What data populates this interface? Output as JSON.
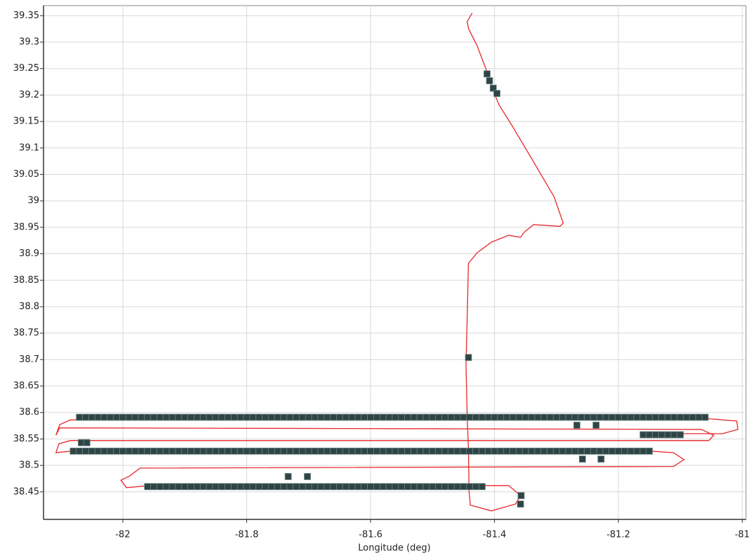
{
  "chart_data": {
    "type": "scatter",
    "x_label": "Longitude (deg)",
    "xlim": [
      -82.128,
      -80.994
    ],
    "ylim": [
      38.398,
      39.369
    ],
    "xticks": [
      -82,
      -81.8,
      -81.6,
      -81.4,
      -81.2,
      -81
    ],
    "yticks": [
      38.45,
      38.5,
      38.55,
      38.6,
      38.65,
      38.7,
      38.75,
      38.8,
      38.85,
      38.9,
      38.95,
      39,
      39.05,
      39.1,
      39.15,
      39.2,
      39.25,
      39.3,
      39.35
    ],
    "grid": true,
    "series": [
      {
        "kind": "line",
        "color": "#e8282c",
        "x": [
          -81.436,
          -81.444,
          -81.442,
          -81.428,
          -81.413,
          -81.402,
          -81.392,
          -81.371,
          -81.337,
          -81.304,
          -81.289,
          -81.294,
          -81.337,
          -81.351,
          -81.358,
          -81.377,
          -81.405,
          -81.428,
          -81.442,
          -81.444,
          -81.446,
          -81.444,
          -81.442,
          -81.441,
          -81.439,
          -81.405,
          -81.366,
          -81.358,
          -81.377,
          -81.957,
          -81.994,
          -82.003,
          -81.989,
          -81.972,
          -81.111,
          -81.094,
          -81.111,
          -81.147,
          -82.083,
          -82.108,
          -82.103,
          -82.085,
          -81.054,
          -81.046,
          -81.066,
          -82.102,
          -82.108,
          -82.102,
          -82.085,
          -81.062,
          -81.009,
          -81.007,
          -81.032,
          -81.165
        ],
        "y": [
          39.355,
          39.339,
          39.326,
          39.293,
          39.247,
          39.207,
          39.18,
          39.141,
          39.074,
          39.008,
          38.958,
          38.952,
          38.955,
          38.942,
          38.931,
          38.935,
          38.922,
          38.902,
          38.882,
          38.783,
          38.69,
          38.592,
          38.531,
          38.451,
          38.425,
          38.414,
          38.427,
          38.443,
          38.462,
          38.462,
          38.458,
          38.472,
          38.48,
          38.495,
          38.498,
          38.511,
          38.524,
          38.527,
          38.527,
          38.524,
          38.541,
          38.547,
          38.547,
          38.557,
          38.568,
          38.571,
          38.557,
          38.577,
          38.586,
          38.589,
          38.584,
          38.568,
          38.56,
          38.56
        ]
      },
      {
        "kind": "marker",
        "color": "#2f4545",
        "x": [
          -82.07,
          -82.06,
          -82.05,
          -82.04,
          -82.03,
          -82.02,
          -82.01,
          -82,
          -81.99,
          -81.98,
          -81.97,
          -81.96,
          -81.95,
          -81.94,
          -81.93,
          -81.92,
          -81.91,
          -81.9,
          -81.89,
          -81.88,
          -81.87,
          -81.86,
          -81.85,
          -81.84,
          -81.83,
          -81.82,
          -81.81,
          -81.8,
          -81.79,
          -81.78,
          -81.77,
          -81.76,
          -81.75,
          -81.74,
          -81.73,
          -81.72,
          -81.71,
          -81.7,
          -81.69,
          -81.68,
          -81.67,
          -81.66,
          -81.65,
          -81.64,
          -81.63,
          -81.62,
          -81.61,
          -81.6,
          -81.59,
          -81.58,
          -81.57,
          -81.56,
          -81.55,
          -81.54,
          -81.53,
          -81.52,
          -81.51,
          -81.5,
          -81.49,
          -81.48,
          -81.47,
          -81.46,
          -81.45,
          -81.44,
          -81.43,
          -81.42,
          -81.41,
          -81.4,
          -81.39,
          -81.38,
          -81.37,
          -81.36,
          -81.35,
          -81.34,
          -81.33,
          -81.32,
          -81.31,
          -81.3,
          -81.29,
          -81.28,
          -81.27,
          -81.26,
          -81.25,
          -81.24,
          -81.23,
          -81.22,
          -81.21,
          -81.2,
          -81.19,
          -81.18,
          -81.17,
          -81.16,
          -81.15,
          -81.14,
          -81.13,
          -81.12,
          -81.11,
          -81.1,
          -81.09,
          -81.08,
          -81.07,
          -81.06
        ],
        "y": [
          38.591,
          38.591,
          38.591,
          38.591,
          38.591,
          38.591,
          38.591,
          38.591,
          38.591,
          38.591,
          38.591,
          38.591,
          38.591,
          38.591,
          38.591,
          38.591,
          38.591,
          38.591,
          38.591,
          38.591,
          38.591,
          38.591,
          38.591,
          38.591,
          38.591,
          38.591,
          38.591,
          38.591,
          38.591,
          38.591,
          38.591,
          38.591,
          38.591,
          38.591,
          38.591,
          38.591,
          38.591,
          38.591,
          38.591,
          38.591,
          38.591,
          38.591,
          38.591,
          38.591,
          38.591,
          38.591,
          38.591,
          38.591,
          38.591,
          38.591,
          38.591,
          38.591,
          38.591,
          38.591,
          38.591,
          38.591,
          38.591,
          38.591,
          38.591,
          38.591,
          38.591,
          38.591,
          38.591,
          38.591,
          38.591,
          38.591,
          38.591,
          38.591,
          38.591,
          38.591,
          38.591,
          38.591,
          38.591,
          38.591,
          38.591,
          38.591,
          38.591,
          38.591,
          38.591,
          38.591,
          38.591,
          38.591,
          38.591,
          38.591,
          38.591,
          38.591,
          38.591,
          38.591,
          38.591,
          38.591,
          38.591,
          38.591,
          38.591,
          38.591,
          38.591,
          38.591,
          38.591,
          38.591,
          38.591,
          38.591,
          38.591,
          38.591
        ]
      },
      {
        "kind": "marker",
        "color": "#2f4545",
        "x": [
          -82.08,
          -82.07,
          -82.06,
          -82.05,
          -82.04,
          -82.03,
          -82.02,
          -82.01,
          -82,
          -81.99,
          -81.98,
          -81.97,
          -81.96,
          -81.95,
          -81.94,
          -81.93,
          -81.92,
          -81.91,
          -81.9,
          -81.89,
          -81.88,
          -81.87,
          -81.86,
          -81.85,
          -81.84,
          -81.83,
          -81.82,
          -81.81,
          -81.8,
          -81.79,
          -81.78,
          -81.77,
          -81.76,
          -81.75,
          -81.74,
          -81.73,
          -81.72,
          -81.71,
          -81.7,
          -81.69,
          -81.68,
          -81.67,
          -81.66,
          -81.65,
          -81.64,
          -81.63,
          -81.62,
          -81.61,
          -81.6,
          -81.59,
          -81.58,
          -81.57,
          -81.56,
          -81.55,
          -81.54,
          -81.53,
          -81.52,
          -81.51,
          -81.5,
          -81.49,
          -81.48,
          -81.47,
          -81.46,
          -81.45,
          -81.44,
          -81.43,
          -81.42,
          -81.41,
          -81.4,
          -81.39,
          -81.38,
          -81.37,
          -81.36,
          -81.35,
          -81.34,
          -81.33,
          -81.32,
          -81.31,
          -81.3,
          -81.29,
          -81.28,
          -81.27,
          -81.26,
          -81.25,
          -81.24,
          -81.23,
          -81.22,
          -81.21,
          -81.2,
          -81.19,
          -81.18,
          -81.17,
          -81.16,
          -81.15
        ],
        "y": [
          38.527,
          38.527,
          38.527,
          38.527,
          38.527,
          38.527,
          38.527,
          38.527,
          38.527,
          38.527,
          38.527,
          38.527,
          38.527,
          38.527,
          38.527,
          38.527,
          38.527,
          38.527,
          38.527,
          38.527,
          38.527,
          38.527,
          38.527,
          38.527,
          38.527,
          38.527,
          38.527,
          38.527,
          38.527,
          38.527,
          38.527,
          38.527,
          38.527,
          38.527,
          38.527,
          38.527,
          38.527,
          38.527,
          38.527,
          38.527,
          38.527,
          38.527,
          38.527,
          38.527,
          38.527,
          38.527,
          38.527,
          38.527,
          38.527,
          38.527,
          38.527,
          38.527,
          38.527,
          38.527,
          38.527,
          38.527,
          38.527,
          38.527,
          38.527,
          38.527,
          38.527,
          38.527,
          38.527,
          38.527,
          38.527,
          38.527,
          38.527,
          38.527,
          38.527,
          38.527,
          38.527,
          38.527,
          38.527,
          38.527,
          38.527,
          38.527,
          38.527,
          38.527,
          38.527,
          38.527,
          38.527,
          38.527,
          38.527,
          38.527,
          38.527,
          38.527,
          38.527,
          38.527,
          38.527,
          38.527,
          38.527,
          38.527,
          38.527,
          38.527
        ]
      },
      {
        "kind": "marker",
        "color": "#2f4545",
        "x": [
          -81.96,
          -81.95,
          -81.94,
          -81.93,
          -81.92,
          -81.91,
          -81.9,
          -81.89,
          -81.88,
          -81.87,
          -81.86,
          -81.85,
          -81.84,
          -81.83,
          -81.82,
          -81.81,
          -81.8,
          -81.79,
          -81.78,
          -81.77,
          -81.76,
          -81.75,
          -81.74,
          -81.73,
          -81.72,
          -81.71,
          -81.7,
          -81.69,
          -81.68,
          -81.67,
          -81.66,
          -81.65,
          -81.64,
          -81.63,
          -81.62,
          -81.61,
          -81.6,
          -81.59,
          -81.58,
          -81.57,
          -81.56,
          -81.55,
          -81.54,
          -81.53,
          -81.52,
          -81.51,
          -81.5,
          -81.49,
          -81.48,
          -81.47,
          -81.46,
          -81.45,
          -81.44,
          -81.43,
          -81.42
        ],
        "y": [
          38.46,
          38.46,
          38.46,
          38.46,
          38.46,
          38.46,
          38.46,
          38.46,
          38.46,
          38.46,
          38.46,
          38.46,
          38.46,
          38.46,
          38.46,
          38.46,
          38.46,
          38.46,
          38.46,
          38.46,
          38.46,
          38.46,
          38.46,
          38.46,
          38.46,
          38.46,
          38.46,
          38.46,
          38.46,
          38.46,
          38.46,
          38.46,
          38.46,
          38.46,
          38.46,
          38.46,
          38.46,
          38.46,
          38.46,
          38.46,
          38.46,
          38.46,
          38.46,
          38.46,
          38.46,
          38.46,
          38.46,
          38.46,
          38.46,
          38.46,
          38.46,
          38.46,
          38.46,
          38.46,
          38.46
        ]
      },
      {
        "kind": "marker",
        "color": "#2f4545",
        "x": [
          -81.16,
          -81.15,
          -81.14,
          -81.13,
          -81.12,
          -81.11,
          -81.1
        ],
        "y": [
          38.558,
          38.558,
          38.558,
          38.558,
          38.558,
          38.558,
          38.558
        ]
      },
      {
        "kind": "marker",
        "color": "#2f4545",
        "x": [
          -81.412,
          -81.408,
          -81.402,
          -81.396,
          -81.442,
          -81.267,
          -81.236,
          -81.258,
          -81.228,
          -81.733,
          -81.702,
          -81.357,
          -81.358,
          -82.067,
          -82.058
        ],
        "y": [
          39.24,
          39.227,
          39.213,
          39.203,
          38.704,
          38.576,
          38.576,
          38.512,
          38.512,
          38.479,
          38.479,
          38.443,
          38.427,
          38.543,
          38.543
        ]
      }
    ]
  }
}
